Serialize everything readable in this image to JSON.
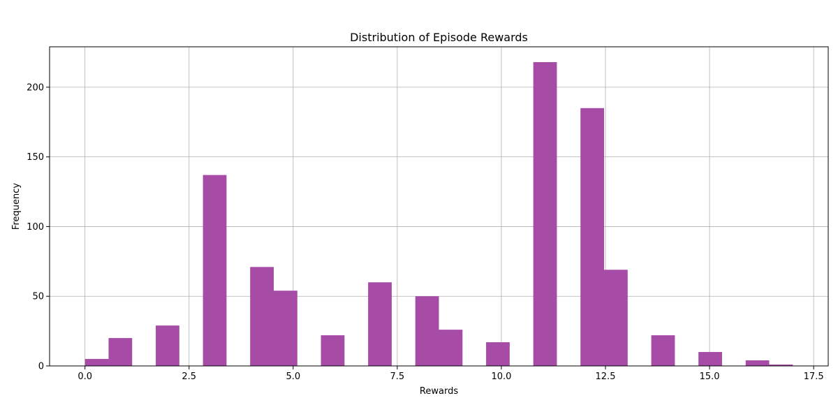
{
  "chart_data": {
    "type": "bar",
    "title": "Distribution of Episode Rewards",
    "xlabel": "Rewards",
    "ylabel": "Frequency",
    "xlim": [
      -0.85,
      17.85
    ],
    "ylim": [
      0,
      229
    ],
    "x_ticks": [
      0.0,
      2.5,
      5.0,
      7.5,
      10.0,
      12.5,
      15.0,
      17.5
    ],
    "x_tick_labels": [
      "0.0",
      "2.5",
      "5.0",
      "7.5",
      "10.0",
      "12.5",
      "15.0",
      "17.5"
    ],
    "y_ticks": [
      0,
      50,
      100,
      150,
      200
    ],
    "y_tick_labels": [
      "0",
      "50",
      "100",
      "150",
      "200"
    ],
    "grid": true,
    "bar_color": "#a64ca6",
    "bins": {
      "start": 0,
      "end": 17,
      "count": 30,
      "values": [
        5,
        20,
        0,
        29,
        0,
        137,
        0,
        71,
        54,
        0,
        22,
        0,
        60,
        0,
        50,
        26,
        0,
        17,
        0,
        218,
        0,
        185,
        69,
        0,
        22,
        0,
        10,
        0,
        4,
        1
      ]
    }
  }
}
